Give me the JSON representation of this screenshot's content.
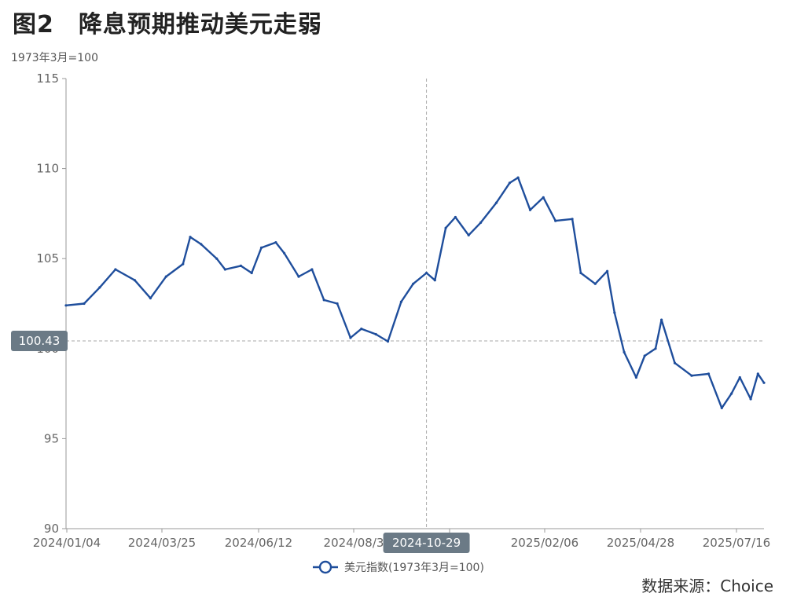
{
  "header": {
    "figure_title": "图2　降息预期推动美元走弱",
    "unit_label": "1973年3月=100",
    "source": "数据来源：Choice"
  },
  "crosshair": {
    "x_label": "2024-10-29",
    "y_label": "100.43"
  },
  "colors": {
    "series": "#1f4e9c",
    "axis": "#999999",
    "crosshair": "#aaaaaa",
    "tooltip_bg": "#6b7a86"
  },
  "chart_data": {
    "type": "line",
    "title": "",
    "xlabel": "",
    "ylabel": "1973年3月=100",
    "ylim": [
      90,
      115
    ],
    "y_ticks": [
      90,
      95,
      100,
      105,
      110,
      115
    ],
    "x_tick_labels": [
      "2024/01/04",
      "2024/03/25",
      "2024/06/12",
      "2024/08/3",
      "/19",
      "2025/02/06",
      "2025/04/28",
      "2025/07/16"
    ],
    "legend_position": "bottom-center",
    "grid": false,
    "series": [
      {
        "name": "美元指数(1973年3月=100)",
        "x": [
          "2024-01-04",
          "2024-01-19",
          "2024-02-01",
          "2024-02-14",
          "2024-03-01",
          "2024-03-14",
          "2024-03-27",
          "2024-04-10",
          "2024-04-16",
          "2024-04-25",
          "2024-05-08",
          "2024-05-15",
          "2024-05-28",
          "2024-06-06",
          "2024-06-14",
          "2024-06-26",
          "2024-07-03",
          "2024-07-15",
          "2024-07-26",
          "2024-08-05",
          "2024-08-16",
          "2024-08-27",
          "2024-09-05",
          "2024-09-17",
          "2024-09-27",
          "2024-10-08",
          "2024-10-18",
          "2024-10-29",
          "2024-11-05",
          "2024-11-14",
          "2024-11-22",
          "2024-12-03",
          "2024-12-13",
          "2024-12-26",
          "2025-01-06",
          "2025-01-13",
          "2025-01-23",
          "2025-02-03",
          "2025-02-13",
          "2025-02-27",
          "2025-03-06",
          "2025-03-18",
          "2025-03-28",
          "2025-04-03",
          "2025-04-11",
          "2025-04-21",
          "2025-04-28",
          "2025-05-07",
          "2025-05-12",
          "2025-05-23",
          "2025-06-06",
          "2025-06-20",
          "2025-07-01",
          "2025-07-09",
          "2025-07-16",
          "2025-07-25",
          "2025-07-31",
          "2025-08-05"
        ],
        "values": [
          102.4,
          102.5,
          103.4,
          104.4,
          103.8,
          102.8,
          104.0,
          104.7,
          106.2,
          105.8,
          105.0,
          104.4,
          104.6,
          104.2,
          105.6,
          105.9,
          105.3,
          104.0,
          104.4,
          102.7,
          102.5,
          100.6,
          101.1,
          100.8,
          100.4,
          102.6,
          103.6,
          104.2,
          103.8,
          106.7,
          107.3,
          106.3,
          107.0,
          108.1,
          109.2,
          109.5,
          107.7,
          108.4,
          107.1,
          107.2,
          104.2,
          103.6,
          104.3,
          102.0,
          99.8,
          98.4,
          99.6,
          100.0,
          101.6,
          99.2,
          98.5,
          98.6,
          96.7,
          97.5,
          98.4,
          97.2,
          98.6,
          98.1
        ]
      }
    ]
  }
}
